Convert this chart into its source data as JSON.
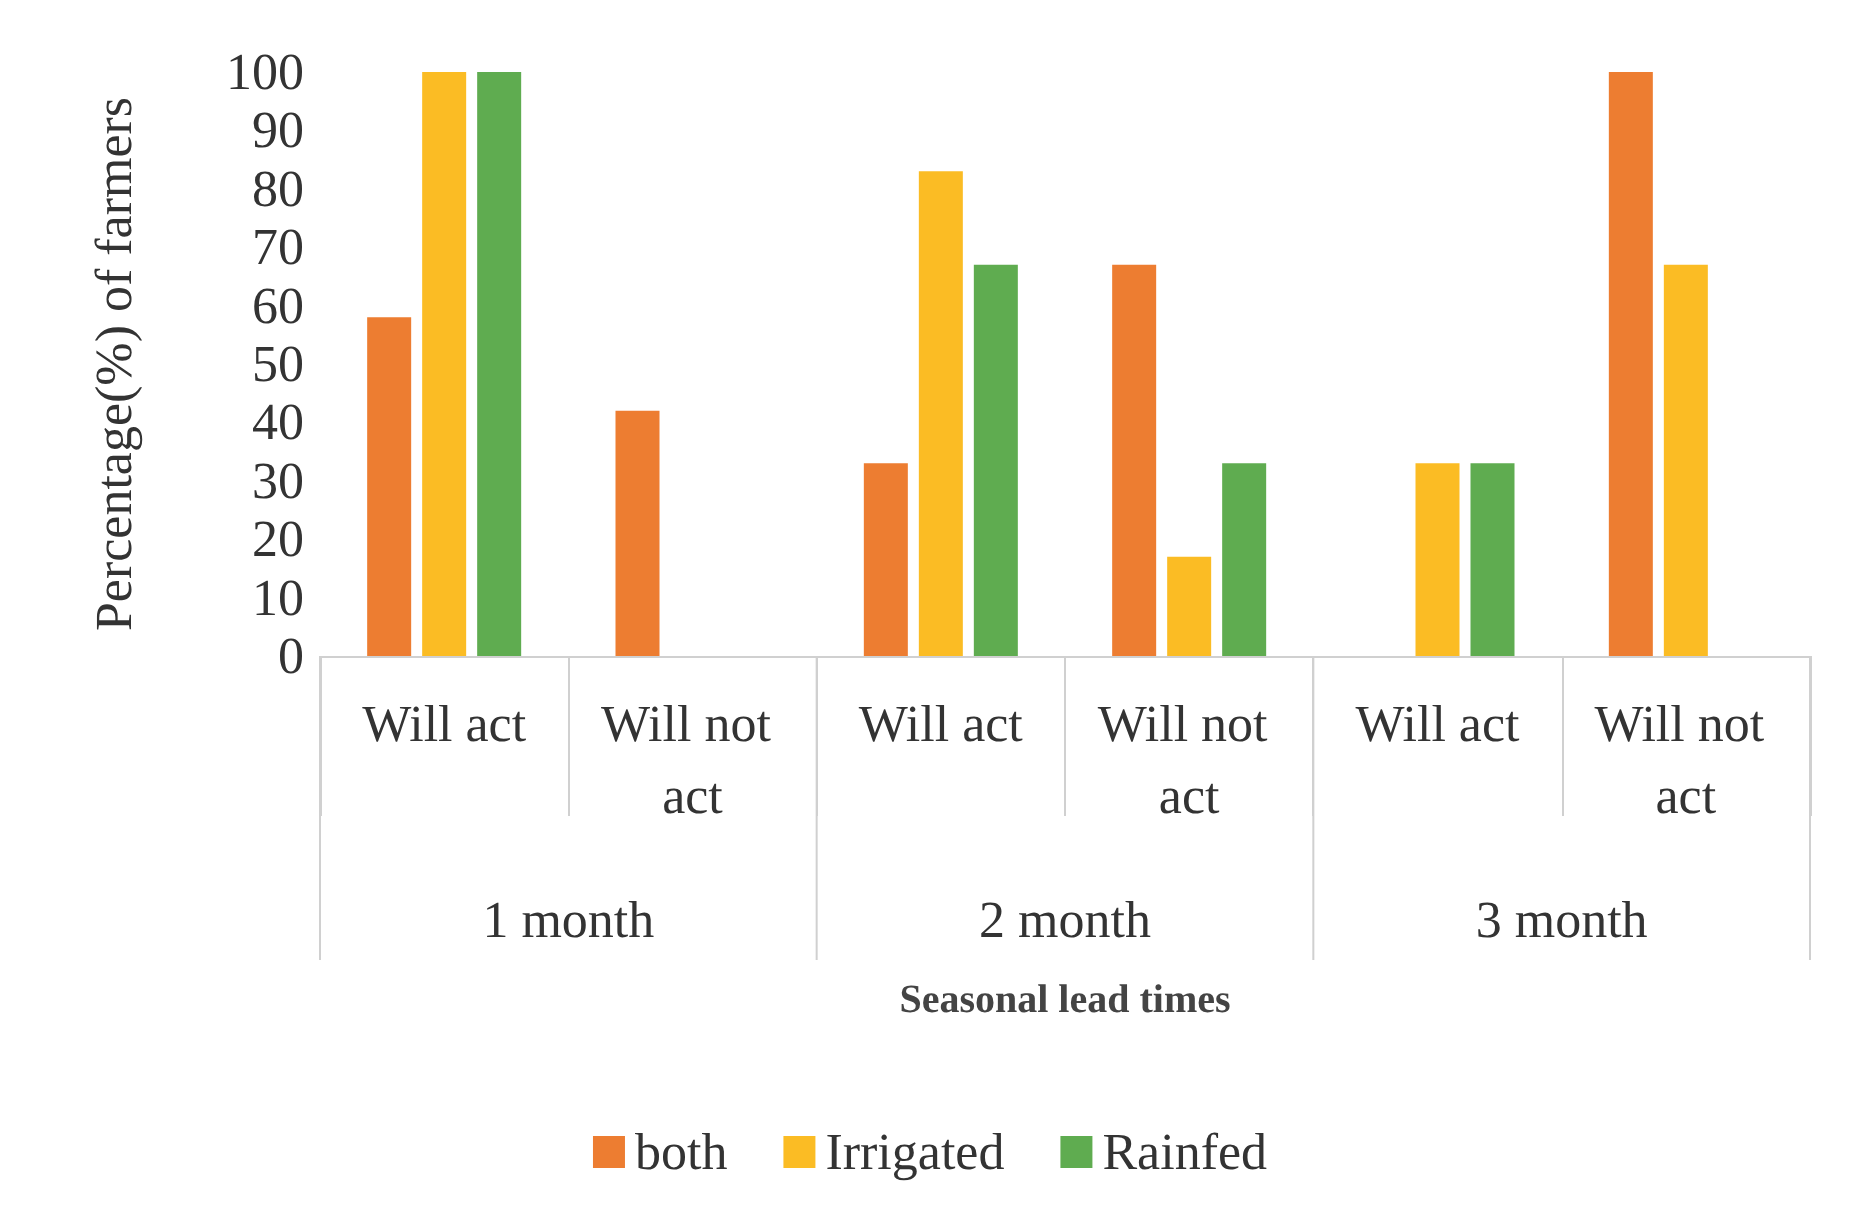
{
  "chart_data": {
    "type": "bar",
    "ylabel": "Percentage(%) of farmers",
    "xlabel": "Seasonal lead times",
    "categories": [
      "Will act",
      "Will not act",
      "Will act",
      "Will not act",
      "Will act",
      "Will not act"
    ],
    "series": [
      {
        "name": "both",
        "color": "#ed7d31",
        "values": [
          58,
          42,
          33,
          67,
          0,
          100
        ]
      },
      {
        "name": "Irrigated",
        "color": "#fbbc24",
        "values": [
          100,
          0,
          83,
          17,
          33,
          67
        ]
      },
      {
        "name": "Rainfed",
        "color": "#5fac50",
        "values": [
          100,
          0,
          67,
          33,
          33,
          0
        ]
      }
    ],
    "annotations": [
      "1 month",
      "2 month",
      "3 month"
    ],
    "ylim": [
      0,
      100
    ],
    "yticks": [
      0,
      10,
      20,
      30,
      40,
      50,
      60,
      70,
      80,
      90,
      100
    ],
    "grid": false,
    "legend": "bottom"
  }
}
